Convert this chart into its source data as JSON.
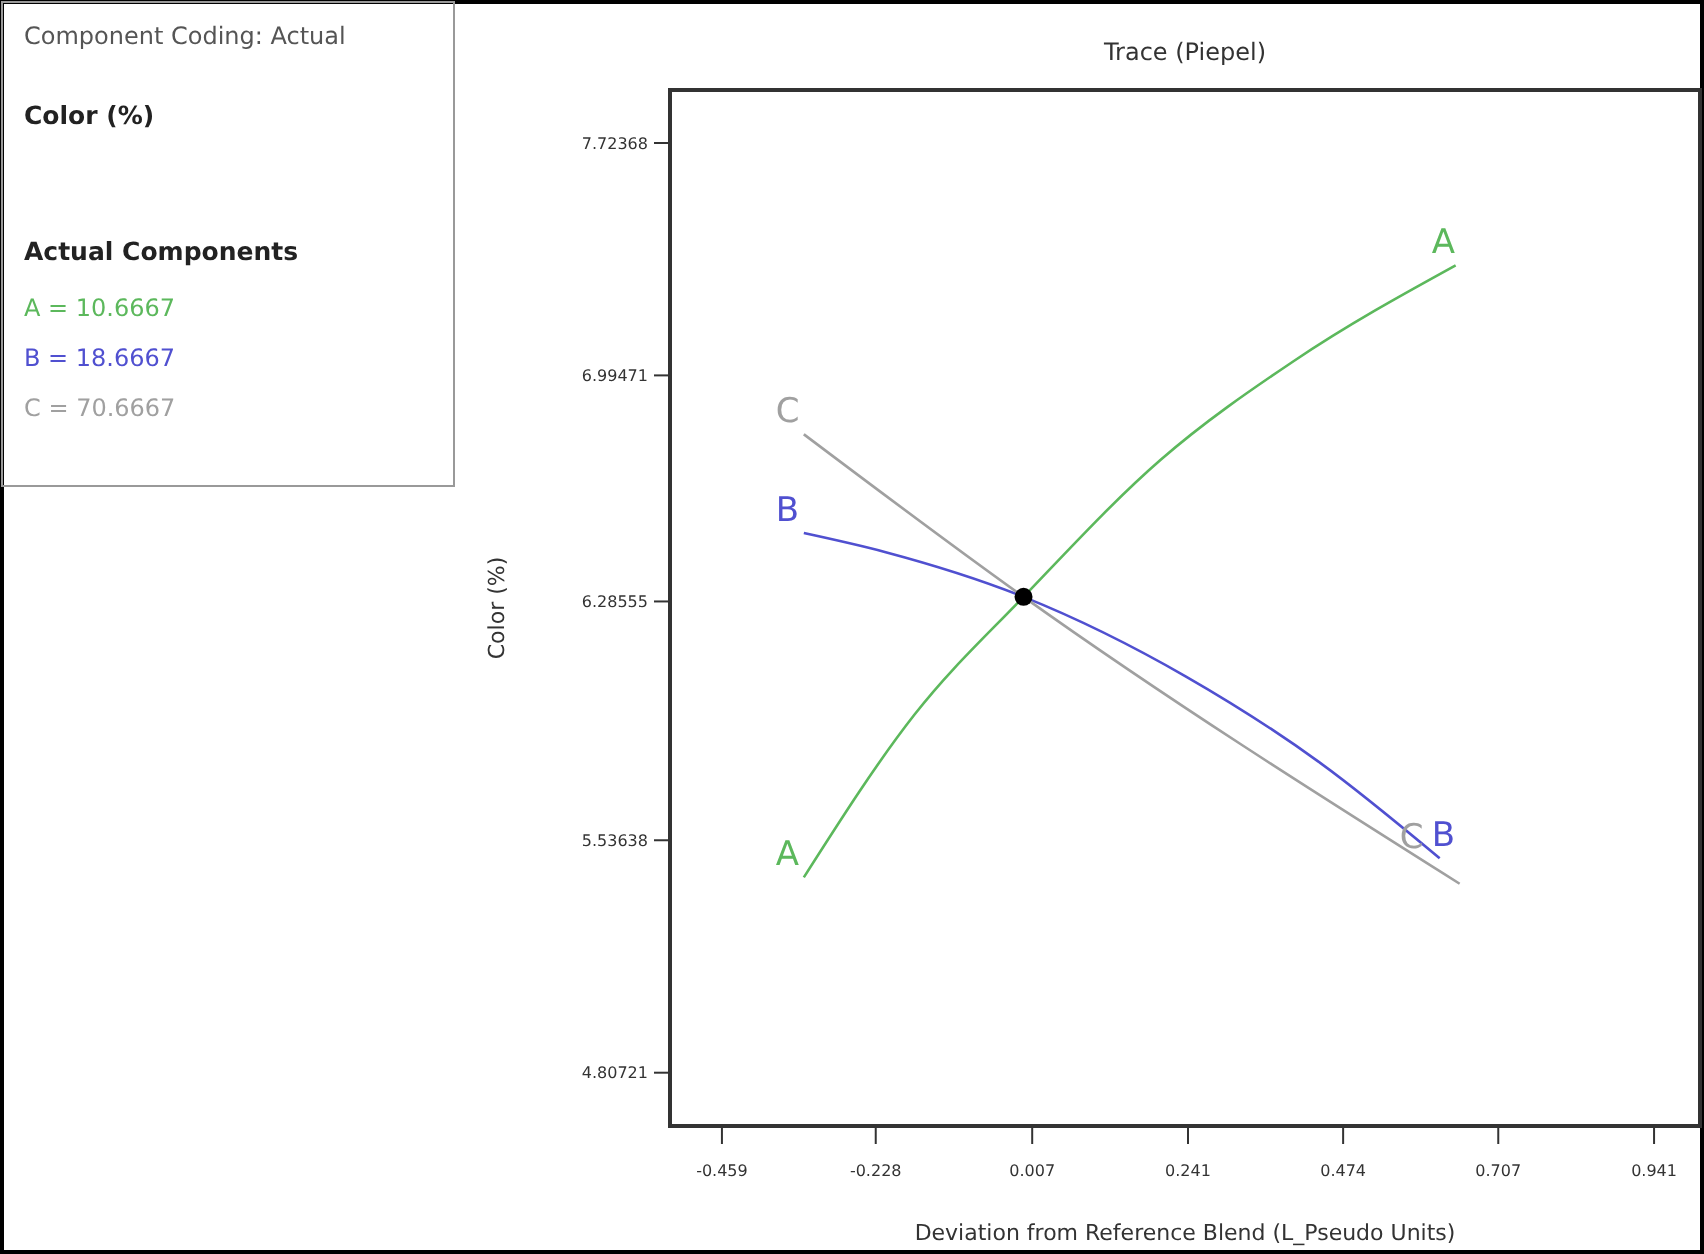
{
  "chart_data": {
    "type": "line",
    "title": "Trace (Piepel)",
    "xlabel": "Deviation from Reference Blend (L_Pseudo Units)",
    "ylabel": "Color (%)",
    "annotations": [
      "Component Coding: Actual",
      "Color (%)",
      "Actual Components",
      "A = 10.6667",
      "B = 18.6667",
      "C = 70.6667"
    ],
    "xlim": [
      -0.537,
      1.01
    ],
    "xticks": [
      -0.459,
      -0.228,
      0.007,
      0.241,
      0.474,
      0.707,
      0.941
    ],
    "ylim": [
      4.64,
      7.89
    ],
    "yticks": [
      4.80721,
      5.53638,
      6.28555,
      6.99471,
      7.72368
    ],
    "grid": false,
    "marker": "none",
    "line_style": "solid",
    "series": [
      {
        "name": "A",
        "color": "#5cb85c",
        "x": [
          -0.336,
          -0.17,
          -0.006,
          0.2,
          0.4,
          0.643
        ],
        "values": [
          5.42,
          5.93,
          6.3,
          6.73,
          7.04,
          7.34
        ]
      },
      {
        "name": "B",
        "color": "#5050d0",
        "x": [
          -0.336,
          -0.213,
          -0.006,
          0.238,
          0.439,
          0.619
        ],
        "values": [
          6.5,
          6.44,
          6.3,
          6.05,
          5.78,
          5.48
        ]
      },
      {
        "name": "C",
        "color": "#a0a0a0",
        "x": [
          -0.336,
          -0.006,
          0.649
        ],
        "values": [
          6.81,
          6.3,
          5.4
        ]
      },
      {
        "type": "scatter",
        "marker": "circle",
        "color": "#000000",
        "x": [
          -0.006
        ],
        "values": [
          6.3
        ]
      }
    ]
  }
}
